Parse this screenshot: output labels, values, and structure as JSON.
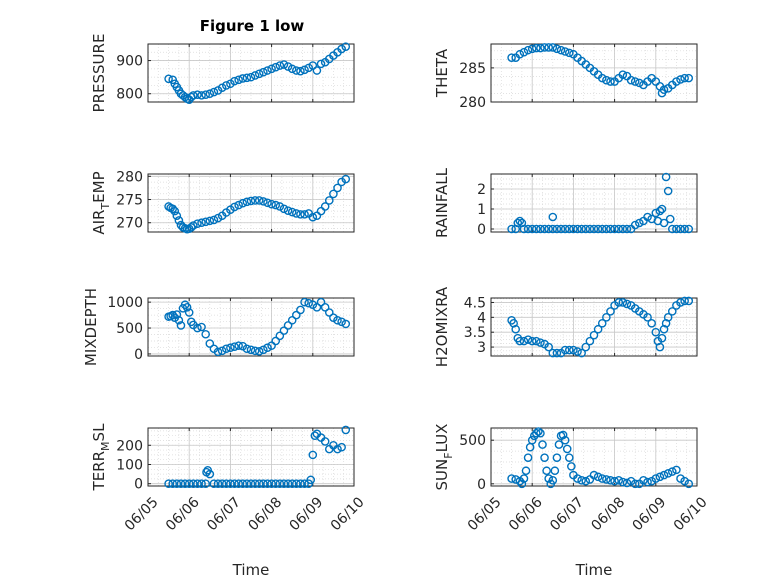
{
  "figure_title": "Figure 1 low",
  "chart_data": [
    {
      "type": "scatter",
      "ylabel": "PRESSURE",
      "ylabel_sub": "",
      "ylim": [
        775,
        950
      ],
      "yticks": [
        800,
        900
      ],
      "xlim": [
        0,
        5
      ],
      "xtick_labels": [],
      "xlabel": "",
      "title": "Figure 1 low",
      "series": [
        {
          "x": [
            0.5,
            0.6,
            0.65,
            0.7,
            0.75,
            0.8,
            0.85,
            0.9,
            0.95,
            1.0,
            1.05,
            1.1,
            1.2,
            1.3,
            1.4,
            1.5,
            1.6,
            1.7,
            1.8,
            1.9,
            2.0,
            2.1,
            2.2,
            2.3,
            2.4,
            2.5,
            2.6,
            2.7,
            2.8,
            2.9,
            3.0,
            3.1,
            3.2,
            3.3,
            3.4,
            3.5,
            3.6,
            3.7,
            3.8,
            3.9,
            4.0,
            4.1,
            4.2,
            4.3,
            4.4,
            4.5,
            4.6,
            4.7,
            4.8
          ],
          "y": [
            845,
            842,
            830,
            820,
            810,
            800,
            795,
            790,
            785,
            782,
            790,
            795,
            797,
            795,
            797,
            800,
            805,
            810,
            818,
            825,
            830,
            838,
            842,
            846,
            848,
            850,
            855,
            860,
            865,
            870,
            875,
            880,
            885,
            888,
            882,
            875,
            870,
            868,
            872,
            878,
            885,
            870,
            890,
            895,
            905,
            915,
            925,
            935,
            942
          ]
        }
      ]
    },
    {
      "type": "scatter",
      "ylabel": "THETA",
      "ylabel_sub": "",
      "ylim": [
        280,
        288.5
      ],
      "yticks": [
        280,
        285
      ],
      "xlim": [
        0,
        5
      ],
      "xtick_labels": [],
      "xlabel": "",
      "series": [
        {
          "x": [
            0.5,
            0.6,
            0.7,
            0.8,
            0.9,
            1.0,
            1.1,
            1.2,
            1.3,
            1.4,
            1.5,
            1.6,
            1.7,
            1.8,
            1.9,
            2.0,
            2.1,
            2.2,
            2.3,
            2.4,
            2.5,
            2.6,
            2.7,
            2.8,
            2.9,
            3.0,
            3.1,
            3.2,
            3.3,
            3.4,
            3.5,
            3.6,
            3.7,
            3.8,
            3.9,
            4.0,
            4.1,
            4.15,
            4.2,
            4.3,
            4.4,
            4.5,
            4.6,
            4.7,
            4.8
          ],
          "y": [
            286.5,
            286.5,
            287.0,
            287.3,
            287.6,
            287.8,
            287.9,
            287.9,
            288.0,
            288.0,
            288.0,
            287.8,
            287.6,
            287.4,
            287.2,
            287.0,
            286.5,
            286.0,
            285.5,
            285.0,
            284.5,
            284.0,
            283.5,
            283.2,
            283.0,
            283.0,
            283.5,
            284.0,
            283.8,
            283.2,
            283.0,
            282.8,
            282.5,
            283.0,
            283.5,
            283.0,
            282.3,
            281.3,
            281.8,
            282.0,
            282.5,
            283.0,
            283.3,
            283.5,
            283.5
          ]
        }
      ]
    },
    {
      "type": "scatter",
      "ylabel": "AIR",
      "ylabel_sub": "T",
      "ylabel_tail": "EMP",
      "ylim": [
        268,
        280.5
      ],
      "yticks": [
        270,
        275,
        280
      ],
      "xlim": [
        0,
        5
      ],
      "xtick_labels": [],
      "xlabel": "",
      "series": [
        {
          "x": [
            0.5,
            0.55,
            0.6,
            0.65,
            0.7,
            0.75,
            0.8,
            0.85,
            0.9,
            0.95,
            1.0,
            1.05,
            1.1,
            1.2,
            1.3,
            1.4,
            1.5,
            1.6,
            1.7,
            1.8,
            1.9,
            2.0,
            2.1,
            2.2,
            2.3,
            2.4,
            2.5,
            2.6,
            2.7,
            2.8,
            2.9,
            3.0,
            3.1,
            3.2,
            3.3,
            3.4,
            3.5,
            3.6,
            3.7,
            3.8,
            3.9,
            4.0,
            4.1,
            4.2,
            4.3,
            4.4,
            4.5,
            4.6,
            4.7,
            4.8
          ],
          "y": [
            273.5,
            273.2,
            273.0,
            272.5,
            271.5,
            270.5,
            269.5,
            269.0,
            268.8,
            268.6,
            268.7,
            269.0,
            269.4,
            269.8,
            270.0,
            270.2,
            270.4,
            270.6,
            271.0,
            271.5,
            272.2,
            272.8,
            273.4,
            273.8,
            274.2,
            274.5,
            274.7,
            274.8,
            274.8,
            274.6,
            274.3,
            274.0,
            273.8,
            273.5,
            273.0,
            272.6,
            272.3,
            272.0,
            271.8,
            271.8,
            272.0,
            271.2,
            271.5,
            272.5,
            273.5,
            274.8,
            276.2,
            277.5,
            278.8,
            279.4
          ]
        }
      ]
    },
    {
      "type": "scatter",
      "ylabel": "RAINFALL",
      "ylabel_sub": "",
      "ylim": [
        -0.15,
        2.75
      ],
      "yticks": [
        0,
        1,
        2
      ],
      "xlim": [
        0,
        5
      ],
      "xtick_labels": [],
      "xlabel": "",
      "series": [
        {
          "x": [
            0.5,
            0.6,
            0.65,
            0.7,
            0.75,
            0.8,
            0.9,
            1.0,
            1.1,
            1.2,
            1.3,
            1.4,
            1.5,
            1.6,
            1.7,
            1.8,
            1.9,
            2.0,
            2.1,
            2.2,
            2.3,
            2.4,
            2.5,
            2.6,
            2.7,
            2.8,
            2.9,
            3.0,
            3.1,
            3.2,
            3.3,
            3.4,
            3.5,
            3.6,
            3.7,
            3.8,
            3.9,
            4.0,
            4.05,
            4.1,
            4.15,
            4.2,
            4.25,
            4.3,
            4.35,
            4.4,
            4.5,
            4.6,
            4.7,
            4.8,
            1.5
          ],
          "y": [
            0,
            0,
            0.3,
            0.4,
            0.3,
            0,
            0,
            0,
            0,
            0,
            0,
            0,
            0,
            0,
            0,
            0,
            0,
            0,
            0,
            0,
            0,
            0,
            0,
            0,
            0,
            0,
            0,
            0,
            0,
            0,
            0,
            0,
            0.2,
            0.3,
            0.4,
            0.6,
            0.5,
            0.8,
            0.4,
            0.9,
            1.0,
            0.3,
            2.6,
            1.9,
            0.5,
            0,
            0,
            0,
            0,
            0,
            0.6
          ]
        }
      ]
    },
    {
      "type": "scatter",
      "ylabel": "MIXDEPTH",
      "ylabel_sub": "",
      "ylim": [
        -40,
        1080
      ],
      "yticks": [
        0,
        500,
        1000
      ],
      "xlim": [
        0,
        5
      ],
      "xtick_labels": [],
      "xlabel": "",
      "series": [
        {
          "x": [
            0.5,
            0.55,
            0.6,
            0.65,
            0.7,
            0.75,
            0.8,
            0.85,
            0.9,
            0.95,
            1.0,
            1.05,
            1.1,
            1.2,
            1.3,
            1.4,
            1.5,
            1.6,
            1.7,
            1.8,
            1.9,
            2.0,
            2.1,
            2.2,
            2.3,
            2.4,
            2.5,
            2.6,
            2.7,
            2.8,
            2.9,
            3.0,
            3.1,
            3.2,
            3.3,
            3.4,
            3.5,
            3.6,
            3.7,
            3.8,
            3.9,
            4.0,
            4.1,
            4.2,
            4.3,
            4.4,
            4.5,
            4.6,
            4.7,
            4.8
          ],
          "y": [
            720,
            730,
            750,
            700,
            760,
            650,
            550,
            880,
            950,
            900,
            800,
            620,
            560,
            500,
            520,
            380,
            200,
            100,
            40,
            60,
            100,
            120,
            140,
            160,
            150,
            100,
            80,
            60,
            50,
            80,
            120,
            160,
            250,
            350,
            450,
            550,
            650,
            750,
            850,
            1000,
            980,
            950,
            900,
            1000,
            900,
            800,
            700,
            650,
            620,
            580
          ]
        }
      ]
    },
    {
      "type": "scatter",
      "ylabel": "H2OMIXRA",
      "ylabel_sub": "",
      "ylim": [
        2.7,
        4.65
      ],
      "yticks": [
        3,
        3.5,
        4,
        4.5
      ],
      "xlim": [
        0,
        5
      ],
      "xtick_labels": [],
      "xlabel": "",
      "series": [
        {
          "x": [
            0.5,
            0.55,
            0.6,
            0.65,
            0.7,
            0.8,
            0.9,
            1.0,
            1.1,
            1.2,
            1.3,
            1.4,
            1.5,
            1.6,
            1.7,
            1.8,
            1.9,
            2.0,
            2.1,
            2.2,
            2.3,
            2.4,
            2.5,
            2.6,
            2.7,
            2.8,
            2.9,
            3.0,
            3.1,
            3.2,
            3.3,
            3.4,
            3.5,
            3.6,
            3.7,
            3.8,
            3.9,
            4.0,
            4.05,
            4.1,
            4.15,
            4.2,
            4.25,
            4.3,
            4.4,
            4.5,
            4.6,
            4.7,
            4.8
          ],
          "y": [
            3.9,
            3.8,
            3.6,
            3.3,
            3.2,
            3.2,
            3.25,
            3.2,
            3.2,
            3.15,
            3.1,
            3.0,
            2.8,
            2.8,
            2.8,
            2.9,
            2.9,
            2.9,
            2.85,
            2.8,
            3.0,
            3.2,
            3.4,
            3.6,
            3.8,
            4.0,
            4.2,
            4.4,
            4.5,
            4.5,
            4.45,
            4.4,
            4.3,
            4.2,
            4.1,
            4.0,
            3.8,
            3.5,
            3.2,
            3.0,
            3.3,
            3.6,
            3.8,
            4.0,
            4.2,
            4.4,
            4.5,
            4.55,
            4.55
          ]
        }
      ]
    },
    {
      "type": "scatter",
      "ylabel": "TERR",
      "ylabel_sub": "M",
      "ylabel_tail": "SL",
      "ylim": [
        -12,
        290
      ],
      "yticks": [
        0,
        100,
        200
      ],
      "xlim": [
        0,
        5
      ],
      "xtick_labels": [
        "06/05",
        "06/06",
        "06/07",
        "06/08",
        "06/09",
        "06/10"
      ],
      "xlabel": "Time",
      "series": [
        {
          "x": [
            0.5,
            0.6,
            0.7,
            0.8,
            0.9,
            1.0,
            1.1,
            1.2,
            1.3,
            1.4,
            1.42,
            1.45,
            1.5,
            1.6,
            1.7,
            1.8,
            1.9,
            2.0,
            2.1,
            2.2,
            2.3,
            2.4,
            2.5,
            2.6,
            2.7,
            2.8,
            2.9,
            3.0,
            3.1,
            3.2,
            3.3,
            3.4,
            3.5,
            3.6,
            3.7,
            3.8,
            3.9,
            3.95,
            4.0,
            4.05,
            4.1,
            4.2,
            4.3,
            4.4,
            4.5,
            4.6,
            4.7,
            4.8
          ],
          "y": [
            0,
            0,
            0,
            0,
            0,
            0,
            0,
            0,
            0,
            0,
            60,
            70,
            50,
            0,
            0,
            0,
            0,
            0,
            0,
            0,
            0,
            0,
            0,
            0,
            0,
            0,
            0,
            0,
            0,
            0,
            0,
            0,
            0,
            0,
            0,
            0,
            0,
            20,
            150,
            250,
            260,
            240,
            220,
            180,
            200,
            180,
            190,
            280
          ]
        }
      ]
    },
    {
      "type": "scatter",
      "ylabel": "SUN",
      "ylabel_sub": "F",
      "ylabel_tail": "LUX",
      "ylim": [
        -25,
        640
      ],
      "yticks": [
        0,
        500
      ],
      "xlim": [
        0,
        5
      ],
      "xtick_labels": [
        "06/05",
        "06/06",
        "06/07",
        "06/08",
        "06/09",
        "06/10"
      ],
      "xlabel": "Time",
      "series": [
        {
          "x": [
            0.5,
            0.6,
            0.7,
            0.75,
            0.8,
            0.85,
            0.9,
            0.95,
            1.0,
            1.05,
            1.1,
            1.15,
            1.2,
            1.25,
            1.3,
            1.35,
            1.4,
            1.45,
            1.5,
            1.55,
            1.6,
            1.65,
            1.7,
            1.75,
            1.8,
            1.85,
            1.9,
            1.95,
            2.0,
            2.1,
            2.2,
            2.3,
            2.4,
            2.5,
            2.6,
            2.7,
            2.8,
            2.9,
            3.0,
            3.1,
            3.2,
            3.3,
            3.4,
            3.5,
            3.6,
            3.7,
            3.8,
            3.9,
            4.0,
            4.1,
            4.2,
            4.3,
            4.4,
            4.5,
            4.6,
            4.7,
            4.8
          ],
          "y": [
            60,
            50,
            30,
            0,
            60,
            150,
            300,
            420,
            500,
            550,
            580,
            600,
            580,
            450,
            300,
            150,
            60,
            0,
            40,
            150,
            300,
            450,
            550,
            560,
            500,
            400,
            300,
            200,
            100,
            60,
            40,
            30,
            50,
            100,
            80,
            60,
            50,
            40,
            30,
            40,
            20,
            10,
            30,
            0,
            0,
            40,
            20,
            30,
            60,
            80,
            100,
            120,
            140,
            160,
            60,
            30,
            0
          ]
        }
      ]
    }
  ]
}
